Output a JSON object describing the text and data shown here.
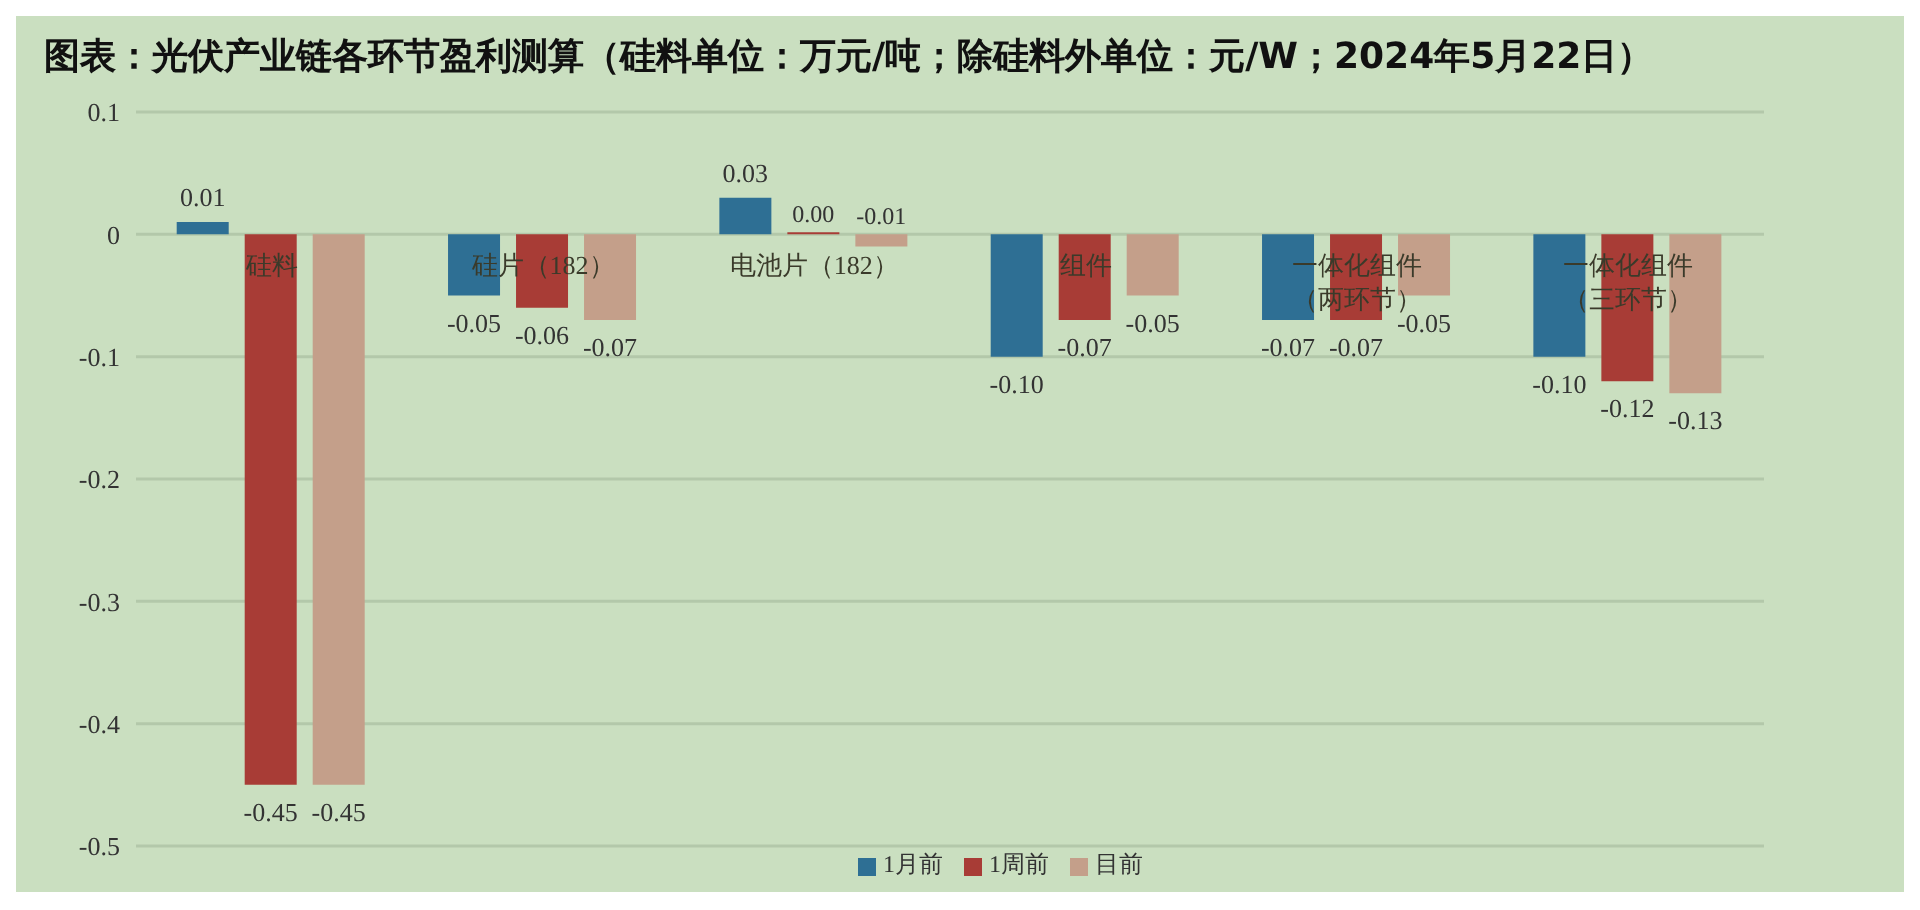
{
  "chart_data": {
    "type": "bar",
    "title": "图表：光伏产业链各环节盈利测算（硅料单位：万元/吨；除硅料外单位：元/W；2024年5月22日）",
    "categories": [
      "硅料",
      "硅片（182）",
      "电池片（182）",
      "组件",
      "一体化组件（两环节）",
      "一体化组件（三环节）"
    ],
    "series": [
      {
        "name": "1月前",
        "color": "#2e6f94",
        "values": [
          0.01,
          -0.05,
          0.03,
          -0.1,
          -0.07,
          -0.1
        ],
        "value_labels": [
          "0.01",
          "-0.05",
          "0.03",
          "-0.10",
          "-0.07",
          "-0.10"
        ]
      },
      {
        "name": "1周前",
        "color": "#a83c36",
        "values": [
          -0.45,
          -0.06,
          0.0,
          -0.07,
          -0.07,
          -0.12
        ],
        "value_labels": [
          "-0.45",
          "-0.06",
          "0.00",
          "-0.07",
          "-0.07",
          "-0.12"
        ]
      },
      {
        "name": "目前",
        "color": "#c49f8a",
        "values": [
          -0.45,
          -0.07,
          -0.01,
          -0.05,
          -0.05,
          -0.13
        ],
        "value_labels": [
          "-0.45",
          "-0.07",
          "-0.01",
          "-0.05",
          "-0.05",
          "-0.13"
        ]
      }
    ],
    "ylim": [
      -0.5,
      0.1
    ],
    "yticks": [
      0.1,
      0,
      -0.1,
      -0.2,
      -0.3,
      -0.4,
      -0.5
    ],
    "grid": "y",
    "legend": "bottom"
  }
}
